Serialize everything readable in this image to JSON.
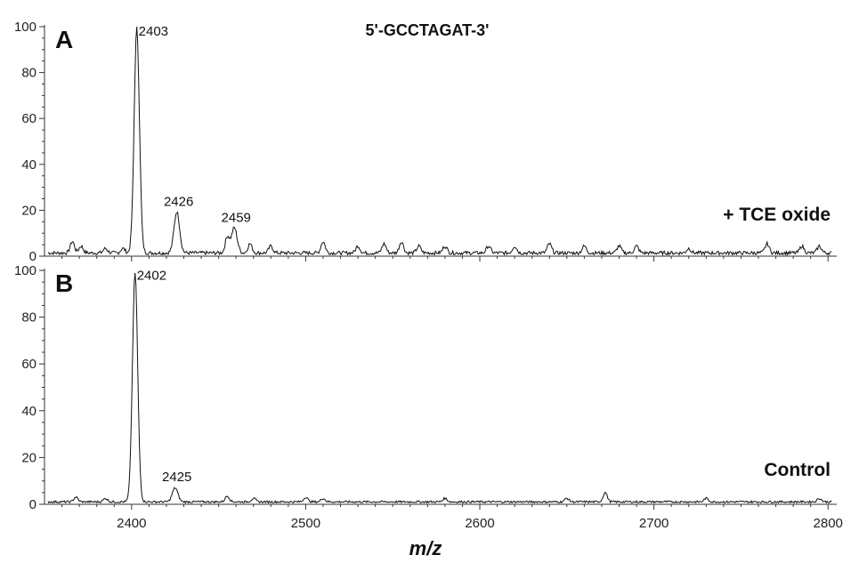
{
  "chart_data": {
    "type": "line",
    "title": "5'-GCCTAGAT-3'",
    "xlabel": "m/z",
    "ylabel": "",
    "xlim": [
      2350,
      2805
    ],
    "ylim": [
      0,
      100
    ],
    "x_ticks": [
      "2400",
      "2500",
      "2600",
      "2700",
      "2800"
    ],
    "y_ticks": [
      "0",
      "20",
      "40",
      "60",
      "80",
      "100"
    ],
    "panels": [
      {
        "letter": "A",
        "condition": "+ TCE oxide",
        "peaks": [
          {
            "mz": 2403,
            "intensity": 98,
            "label": "2403"
          },
          {
            "mz": 2426,
            "intensity": 18,
            "label": "2426"
          },
          {
            "mz": 2459,
            "intensity": 11,
            "label": "2459"
          }
        ],
        "minor_peaks": [
          {
            "mz": 2366,
            "intensity": 5
          },
          {
            "mz": 2371,
            "intensity": 3
          },
          {
            "mz": 2385,
            "intensity": 2
          },
          {
            "mz": 2395,
            "intensity": 2
          },
          {
            "mz": 2455,
            "intensity": 7
          },
          {
            "mz": 2468,
            "intensity": 4
          },
          {
            "mz": 2480,
            "intensity": 3
          },
          {
            "mz": 2510,
            "intensity": 5
          },
          {
            "mz": 2530,
            "intensity": 3
          },
          {
            "mz": 2545,
            "intensity": 4
          },
          {
            "mz": 2555,
            "intensity": 5
          },
          {
            "mz": 2565,
            "intensity": 3
          },
          {
            "mz": 2580,
            "intensity": 3
          },
          {
            "mz": 2605,
            "intensity": 3
          },
          {
            "mz": 2620,
            "intensity": 3
          },
          {
            "mz": 2640,
            "intensity": 4
          },
          {
            "mz": 2660,
            "intensity": 3
          },
          {
            "mz": 2680,
            "intensity": 3
          },
          {
            "mz": 2690,
            "intensity": 3
          },
          {
            "mz": 2720,
            "intensity": 2
          },
          {
            "mz": 2765,
            "intensity": 4
          },
          {
            "mz": 2785,
            "intensity": 3
          },
          {
            "mz": 2795,
            "intensity": 3
          }
        ]
      },
      {
        "letter": "B",
        "condition": "Control",
        "peaks": [
          {
            "mz": 2402,
            "intensity": 98,
            "label": "2402"
          },
          {
            "mz": 2425,
            "intensity": 6,
            "label": "2425"
          }
        ],
        "minor_peaks": [
          {
            "mz": 2368,
            "intensity": 2
          },
          {
            "mz": 2385,
            "intensity": 1.5
          },
          {
            "mz": 2455,
            "intensity": 2.5
          },
          {
            "mz": 2470,
            "intensity": 1.5
          },
          {
            "mz": 2500,
            "intensity": 2
          },
          {
            "mz": 2510,
            "intensity": 1.5
          },
          {
            "mz": 2580,
            "intensity": 1.5
          },
          {
            "mz": 2650,
            "intensity": 1.5
          },
          {
            "mz": 2672,
            "intensity": 4
          },
          {
            "mz": 2730,
            "intensity": 1.5
          },
          {
            "mz": 2795,
            "intensity": 1.5
          }
        ]
      }
    ]
  }
}
